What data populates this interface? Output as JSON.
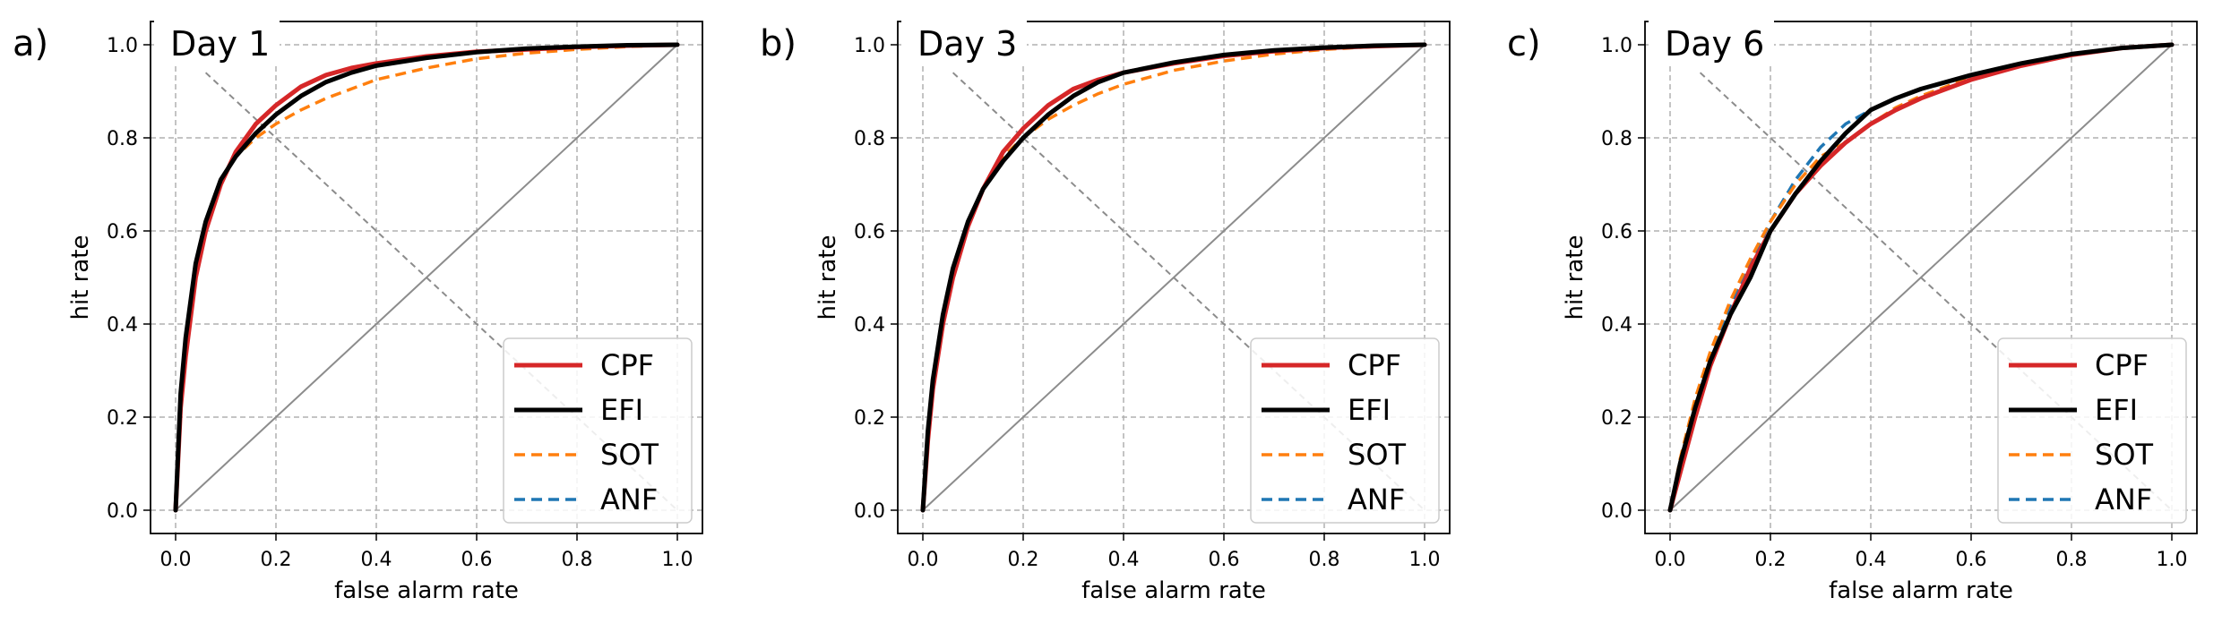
{
  "chart_data": [
    {
      "type": "line",
      "panel_label": "a)",
      "title": "Day 1",
      "xlabel": "false alarm rate",
      "ylabel": "hit rate",
      "xlim": [
        -0.05,
        1.05
      ],
      "ylim": [
        -0.05,
        1.05
      ],
      "xticks": [
        "0.0",
        "0.2",
        "0.4",
        "0.6",
        "0.8",
        "1.0"
      ],
      "yticks": [
        "0.0",
        "0.2",
        "0.4",
        "0.6",
        "0.8",
        "1.0"
      ],
      "grid": true,
      "legend_position": "lower-right",
      "reference_lines": [
        {
          "kind": "diagonal",
          "x": [
            0,
            1
          ],
          "y": [
            0,
            1
          ]
        },
        {
          "kind": "dashed-diagonal",
          "x": [
            0.06,
            1
          ],
          "y": [
            0.94,
            0
          ]
        }
      ],
      "series": [
        {
          "name": "CPF",
          "color": "#d62728",
          "style": "solid",
          "x": [
            0,
            0.01,
            0.02,
            0.04,
            0.06,
            0.09,
            0.12,
            0.16,
            0.2,
            0.25,
            0.3,
            0.35,
            0.4,
            0.5,
            0.6,
            0.7,
            0.8,
            0.9,
            1.0
          ],
          "y": [
            0,
            0.22,
            0.33,
            0.5,
            0.6,
            0.7,
            0.77,
            0.83,
            0.87,
            0.91,
            0.935,
            0.95,
            0.96,
            0.975,
            0.985,
            0.99,
            0.995,
            0.998,
            1.0
          ]
        },
        {
          "name": "EFI",
          "color": "#000000",
          "style": "solid",
          "x": [
            0,
            0.01,
            0.02,
            0.04,
            0.06,
            0.09,
            0.12,
            0.16,
            0.2,
            0.25,
            0.3,
            0.35,
            0.4,
            0.5,
            0.6,
            0.7,
            0.8,
            0.9,
            1.0
          ],
          "y": [
            0,
            0.25,
            0.37,
            0.53,
            0.62,
            0.71,
            0.76,
            0.81,
            0.85,
            0.89,
            0.92,
            0.94,
            0.955,
            0.972,
            0.984,
            0.992,
            0.996,
            0.999,
            1.0
          ]
        },
        {
          "name": "SOT",
          "color": "#ff7f0e",
          "style": "dashed",
          "x": [
            0,
            0.01,
            0.02,
            0.04,
            0.06,
            0.09,
            0.12,
            0.16,
            0.2,
            0.25,
            0.3,
            0.35,
            0.4,
            0.5,
            0.6,
            0.7,
            0.8,
            0.9,
            1.0
          ],
          "y": [
            0,
            0.25,
            0.37,
            0.53,
            0.62,
            0.71,
            0.76,
            0.8,
            0.83,
            0.86,
            0.885,
            0.905,
            0.925,
            0.95,
            0.97,
            0.982,
            0.99,
            0.996,
            1.0
          ]
        },
        {
          "name": "ANF",
          "color": "#1f77b4",
          "style": "dashed",
          "x": [
            0,
            0.01,
            0.02,
            0.04,
            0.06,
            0.09,
            0.12,
            0.16,
            0.2,
            0.25,
            0.3,
            0.35,
            0.4,
            0.5,
            0.6,
            0.7,
            0.8,
            0.9,
            1.0
          ],
          "y": [
            0,
            0.25,
            0.37,
            0.53,
            0.62,
            0.71,
            0.76,
            0.81,
            0.85,
            0.89,
            0.92,
            0.94,
            0.955,
            0.972,
            0.984,
            0.992,
            0.996,
            0.999,
            1.0
          ]
        }
      ]
    },
    {
      "type": "line",
      "panel_label": "b)",
      "title": "Day 3",
      "xlabel": "false alarm rate",
      "ylabel": "hit rate",
      "xlim": [
        -0.05,
        1.05
      ],
      "ylim": [
        -0.05,
        1.05
      ],
      "xticks": [
        "0.0",
        "0.2",
        "0.4",
        "0.6",
        "0.8",
        "1.0"
      ],
      "yticks": [
        "0.0",
        "0.2",
        "0.4",
        "0.6",
        "0.8",
        "1.0"
      ],
      "grid": true,
      "legend_position": "lower-right",
      "reference_lines": [
        {
          "kind": "diagonal",
          "x": [
            0,
            1
          ],
          "y": [
            0,
            1
          ]
        },
        {
          "kind": "dashed-diagonal",
          "x": [
            0.06,
            1
          ],
          "y": [
            0.94,
            0
          ]
        }
      ],
      "series": [
        {
          "name": "CPF",
          "color": "#d62728",
          "style": "solid",
          "x": [
            0,
            0.01,
            0.02,
            0.04,
            0.06,
            0.09,
            0.12,
            0.16,
            0.2,
            0.25,
            0.3,
            0.35,
            0.4,
            0.5,
            0.6,
            0.7,
            0.8,
            0.9,
            1.0
          ],
          "y": [
            0,
            0.15,
            0.26,
            0.4,
            0.5,
            0.61,
            0.69,
            0.77,
            0.82,
            0.87,
            0.905,
            0.925,
            0.94,
            0.96,
            0.976,
            0.986,
            0.993,
            0.997,
            1.0
          ]
        },
        {
          "name": "EFI",
          "color": "#000000",
          "style": "solid",
          "x": [
            0,
            0.01,
            0.02,
            0.04,
            0.06,
            0.09,
            0.12,
            0.16,
            0.2,
            0.25,
            0.3,
            0.35,
            0.4,
            0.5,
            0.6,
            0.7,
            0.8,
            0.9,
            1.0
          ],
          "y": [
            0,
            0.17,
            0.28,
            0.42,
            0.52,
            0.62,
            0.69,
            0.75,
            0.8,
            0.85,
            0.89,
            0.92,
            0.94,
            0.962,
            0.978,
            0.988,
            0.994,
            0.998,
            1.0
          ]
        },
        {
          "name": "SOT",
          "color": "#ff7f0e",
          "style": "dashed",
          "x": [
            0,
            0.01,
            0.02,
            0.04,
            0.06,
            0.09,
            0.12,
            0.16,
            0.2,
            0.25,
            0.3,
            0.35,
            0.4,
            0.5,
            0.6,
            0.7,
            0.8,
            0.9,
            1.0
          ],
          "y": [
            0,
            0.17,
            0.28,
            0.42,
            0.52,
            0.62,
            0.69,
            0.76,
            0.8,
            0.84,
            0.87,
            0.895,
            0.915,
            0.945,
            0.965,
            0.98,
            0.99,
            0.996,
            1.0
          ]
        },
        {
          "name": "ANF",
          "color": "#1f77b4",
          "style": "dashed",
          "x": [
            0,
            0.01,
            0.02,
            0.04,
            0.06,
            0.09,
            0.12,
            0.16,
            0.2,
            0.25,
            0.3,
            0.35,
            0.4,
            0.5,
            0.6,
            0.7,
            0.8,
            0.9,
            1.0
          ],
          "y": [
            0,
            0.17,
            0.28,
            0.42,
            0.52,
            0.62,
            0.69,
            0.75,
            0.8,
            0.85,
            0.89,
            0.92,
            0.94,
            0.962,
            0.978,
            0.988,
            0.994,
            0.998,
            1.0
          ]
        }
      ]
    },
    {
      "type": "line",
      "panel_label": "c)",
      "title": "Day 6",
      "xlabel": "false alarm rate",
      "ylabel": "hit rate",
      "xlim": [
        -0.05,
        1.05
      ],
      "ylim": [
        -0.05,
        1.05
      ],
      "xticks": [
        "0.0",
        "0.2",
        "0.4",
        "0.6",
        "0.8",
        "1.0"
      ],
      "yticks": [
        "0.0",
        "0.2",
        "0.4",
        "0.6",
        "0.8",
        "1.0"
      ],
      "grid": true,
      "legend_position": "lower-right",
      "reference_lines": [
        {
          "kind": "diagonal",
          "x": [
            0,
            1
          ],
          "y": [
            0,
            1
          ]
        },
        {
          "kind": "dashed-diagonal",
          "x": [
            0.06,
            1
          ],
          "y": [
            0.94,
            0
          ]
        }
      ],
      "series": [
        {
          "name": "CPF",
          "color": "#d62728",
          "style": "solid",
          "x": [
            0,
            0.02,
            0.05,
            0.08,
            0.12,
            0.16,
            0.2,
            0.25,
            0.3,
            0.35,
            0.4,
            0.45,
            0.5,
            0.6,
            0.7,
            0.8,
            0.9,
            1.0
          ],
          "y": [
            0,
            0.08,
            0.2,
            0.31,
            0.42,
            0.52,
            0.6,
            0.68,
            0.74,
            0.79,
            0.83,
            0.86,
            0.885,
            0.925,
            0.955,
            0.978,
            0.993,
            1.0
          ]
        },
        {
          "name": "EFI",
          "color": "#000000",
          "style": "solid",
          "x": [
            0,
            0.02,
            0.05,
            0.08,
            0.12,
            0.16,
            0.2,
            0.25,
            0.3,
            0.35,
            0.4,
            0.45,
            0.5,
            0.6,
            0.7,
            0.8,
            0.9,
            1.0
          ],
          "y": [
            0,
            0.1,
            0.22,
            0.32,
            0.42,
            0.5,
            0.6,
            0.68,
            0.75,
            0.81,
            0.86,
            0.885,
            0.905,
            0.935,
            0.96,
            0.98,
            0.993,
            1.0
          ]
        },
        {
          "name": "SOT",
          "color": "#ff7f0e",
          "style": "dashed",
          "x": [
            0,
            0.02,
            0.05,
            0.08,
            0.12,
            0.16,
            0.2,
            0.25,
            0.3,
            0.35,
            0.4,
            0.45,
            0.5,
            0.6,
            0.7,
            0.8,
            0.9,
            1.0
          ],
          "y": [
            0,
            0.11,
            0.24,
            0.34,
            0.45,
            0.54,
            0.62,
            0.7,
            0.76,
            0.79,
            0.83,
            0.865,
            0.89,
            0.93,
            0.957,
            0.978,
            0.993,
            1.0
          ]
        },
        {
          "name": "ANF",
          "color": "#1f77b4",
          "style": "dashed",
          "x": [
            0,
            0.02,
            0.05,
            0.08,
            0.12,
            0.16,
            0.2,
            0.25,
            0.3,
            0.35,
            0.4,
            0.45,
            0.5,
            0.6,
            0.7,
            0.8,
            0.9,
            1.0
          ],
          "y": [
            0,
            0.1,
            0.23,
            0.33,
            0.44,
            0.53,
            0.62,
            0.71,
            0.78,
            0.83,
            0.86,
            0.885,
            0.905,
            0.935,
            0.96,
            0.98,
            0.993,
            1.0
          ]
        }
      ]
    }
  ]
}
